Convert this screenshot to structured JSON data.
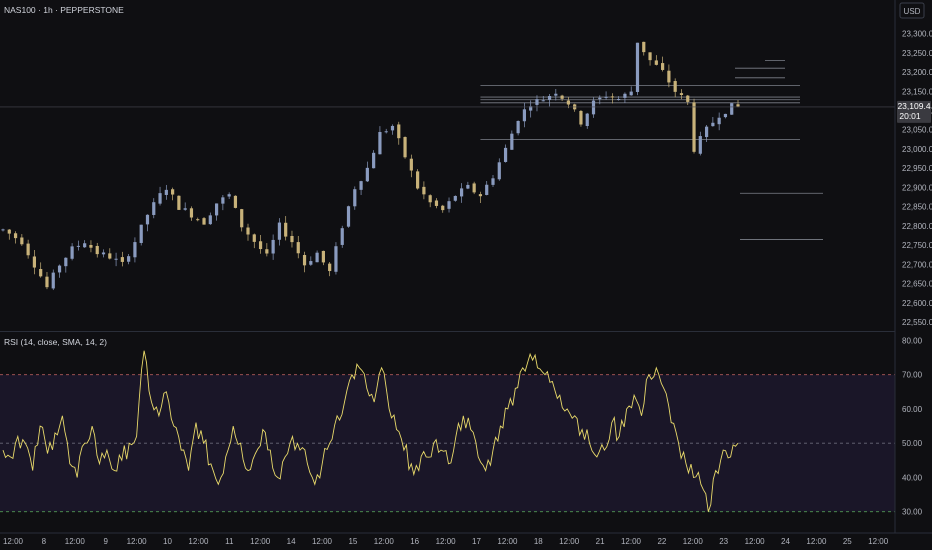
{
  "header": {
    "symbol": "NAS100 · 1h · PEPPERSTONE",
    "currency": "USD"
  },
  "rsi_panel": {
    "label": "RSI (14, close, SMA, 14, 2)"
  },
  "current_price": {
    "value": "23,109.4",
    "countdown": "20:01"
  },
  "colors": {
    "background": "#0f0f12",
    "candle": "#8a9bbf",
    "candle_alt": "#c8b27a",
    "rsi_line": "#e8d96a",
    "band_fill": "#1a1628",
    "band_upper": "#b05a5a",
    "band_mid": "#6a6a7a",
    "band_lower": "#5ab05a",
    "level_line": "#7d808a",
    "price_tag_bg": "#3a3a40"
  },
  "chart_data": [
    {
      "type": "candlestick",
      "title": "NAS100 · 1h · PEPPERSTONE",
      "y_axis_ticks": [
        "23,300.0",
        "23,250.0",
        "23,200.0",
        "23,150.0",
        "23,100.0",
        "23,050.0",
        "23,000.0",
        "22,950.0",
        "22,900.0",
        "22,850.0",
        "22,800.0",
        "22,750.0",
        "22,700.0",
        "22,650.0",
        "22,600.0",
        "22,550.0"
      ],
      "ylim": [
        22540,
        23330
      ],
      "x_axis_ticks": [
        "12:00",
        "8",
        "12:00",
        "9",
        "12:00",
        "10",
        "12:00",
        "11",
        "12:00",
        "14",
        "12:00",
        "15",
        "12:00",
        "16",
        "12:00",
        "17",
        "12:00",
        "18",
        "12:00",
        "21",
        "12:00",
        "22",
        "12:00",
        "23",
        "12:00",
        "24",
        "12:00",
        "25",
        "12:00"
      ],
      "close_path": [
        [
          0,
          22790
        ],
        [
          3,
          22760
        ],
        [
          5,
          22700
        ],
        [
          7,
          22640
        ],
        [
          9,
          22700
        ],
        [
          11,
          22740
        ],
        [
          13,
          22760
        ],
        [
          15,
          22730
        ],
        [
          17,
          22720
        ],
        [
          19,
          22700
        ],
        [
          21,
          22760
        ],
        [
          23,
          22830
        ],
        [
          25,
          22880
        ],
        [
          26,
          22900
        ],
        [
          28,
          22850
        ],
        [
          30,
          22830
        ],
        [
          32,
          22810
        ],
        [
          34,
          22860
        ],
        [
          36,
          22880
        ],
        [
          38,
          22800
        ],
        [
          40,
          22760
        ],
        [
          42,
          22720
        ],
        [
          44,
          22800
        ],
        [
          46,
          22760
        ],
        [
          48,
          22700
        ],
        [
          50,
          22730
        ],
        [
          52,
          22680
        ],
        [
          54,
          22800
        ],
        [
          56,
          22900
        ],
        [
          58,
          22950
        ],
        [
          60,
          23040
        ],
        [
          62,
          23060
        ],
        [
          64,
          22980
        ],
        [
          66,
          22900
        ],
        [
          68,
          22860
        ],
        [
          70,
          22840
        ],
        [
          72,
          22880
        ],
        [
          74,
          22900
        ],
        [
          76,
          22880
        ],
        [
          78,
          22930
        ],
        [
          80,
          23000
        ],
        [
          82,
          23080
        ],
        [
          84,
          23120
        ],
        [
          86,
          23130
        ],
        [
          88,
          23150
        ],
        [
          90,
          23120
        ],
        [
          92,
          23070
        ],
        [
          94,
          23120
        ],
        [
          96,
          23140
        ],
        [
          98,
          23130
        ],
        [
          100,
          23150
        ],
        [
          101,
          23280
        ],
        [
          103,
          23230
        ],
        [
          105,
          23200
        ],
        [
          107,
          23150
        ],
        [
          109,
          23120
        ],
        [
          110,
          23000
        ],
        [
          112,
          23050
        ],
        [
          114,
          23090
        ],
        [
          116,
          23110
        ],
        [
          117,
          23109.4
        ]
      ],
      "horizontal_levels": [
        {
          "price": 23165,
          "extent": "bar 76 to bar 130"
        },
        {
          "price": 23135,
          "extent": "bar 76 to bar 130"
        },
        {
          "price": 23128,
          "extent": "bar 76 to bar 130"
        },
        {
          "price": 23120,
          "extent": "bar 76 to bar 130"
        },
        {
          "price": 23025,
          "extent": "bar 76 to bar 130"
        },
        {
          "price": 23230,
          "extent": "right zone"
        },
        {
          "price": 23210,
          "extent": "right zone"
        },
        {
          "price": 23185,
          "extent": "right zone"
        },
        {
          "price": 22885,
          "extent": "right zone"
        },
        {
          "price": 22765,
          "extent": "right zone"
        }
      ],
      "last_price": 23109.4
    },
    {
      "type": "line",
      "title": "RSI (14, close, SMA, 14, 2)",
      "y_axis_ticks": [
        "80.00",
        "70.00",
        "60.00",
        "50.00",
        "40.00",
        "30.00"
      ],
      "ylim": [
        27,
        81
      ],
      "bands": {
        "upper": 70,
        "middle": 50,
        "lower": 30
      },
      "series": [
        {
          "values": [
            48,
            46,
            52,
            50,
            42,
            55,
            47,
            53,
            58,
            44,
            40,
            50,
            55,
            44,
            48,
            42,
            45,
            50,
            52,
            77,
            62,
            58,
            65,
            55,
            48,
            42,
            56,
            50,
            44,
            38,
            46,
            55,
            50,
            42,
            47,
            54,
            48,
            40,
            46,
            52,
            48,
            44,
            38,
            44,
            50,
            58,
            62,
            70,
            72,
            66,
            62,
            72,
            60,
            54,
            48,
            44,
            42,
            46,
            50,
            48,
            44,
            52,
            58,
            54,
            46,
            42,
            48,
            55,
            60,
            66,
            72,
            76,
            72,
            70,
            68,
            64,
            60,
            58,
            54,
            50,
            46,
            48,
            56,
            52,
            60,
            64,
            58,
            70,
            72,
            66,
            56,
            50,
            44,
            40,
            38,
            30,
            42,
            48,
            46,
            50
          ]
        }
      ]
    }
  ]
}
